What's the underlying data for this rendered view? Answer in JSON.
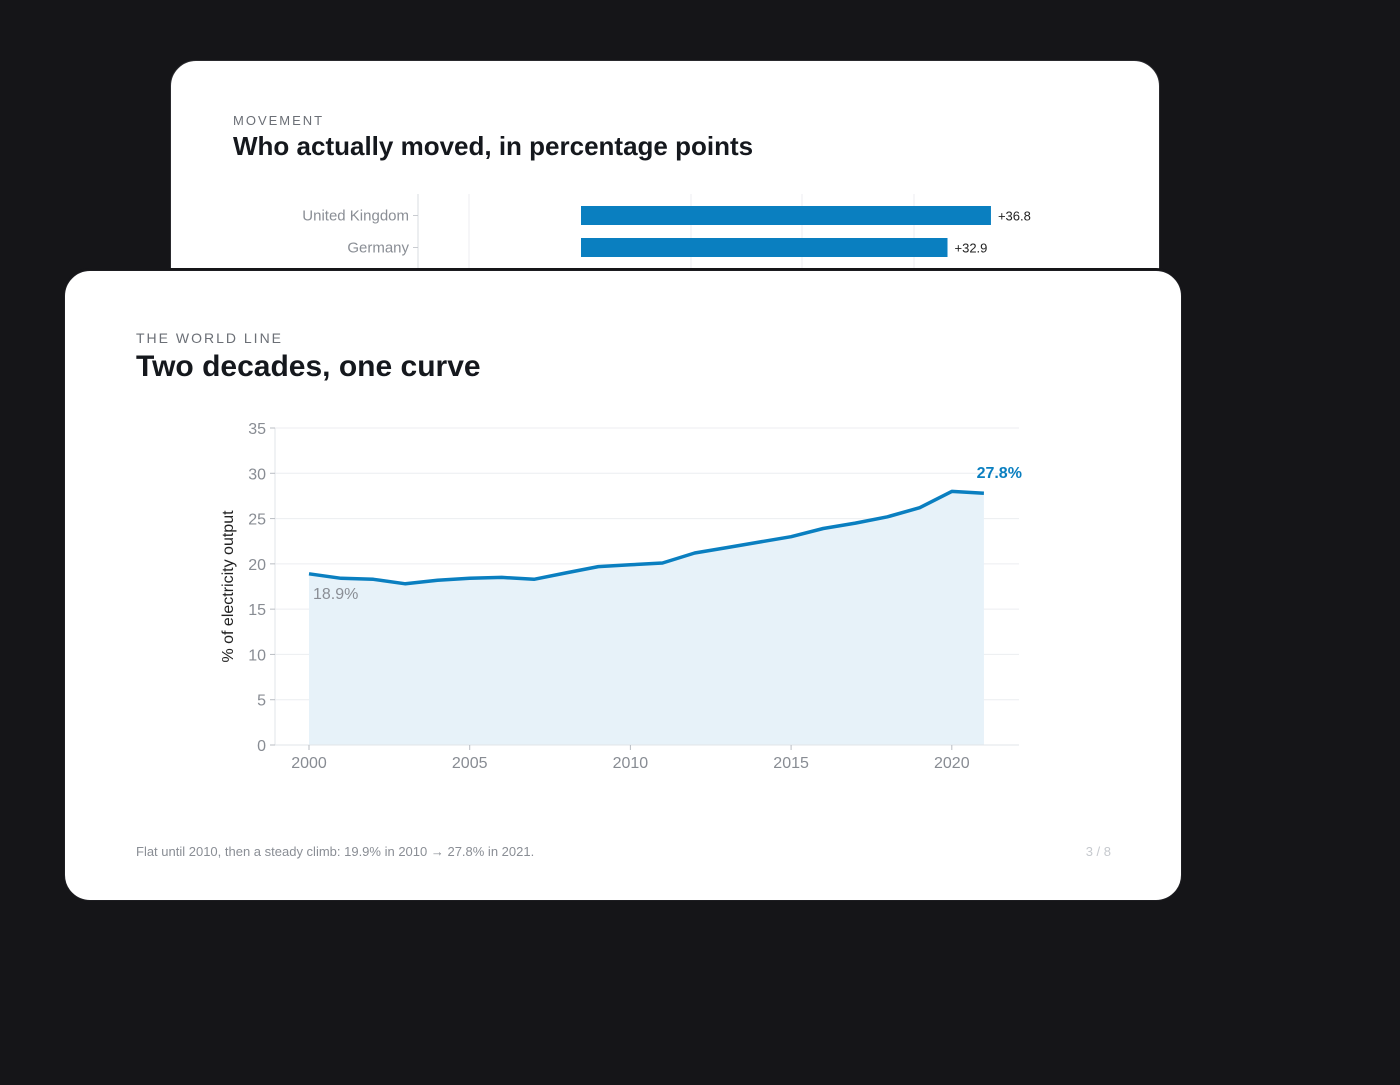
{
  "back_card": {
    "eyebrow": "MOVEMENT",
    "title": "Who actually moved, in percentage points",
    "chart_data": {
      "type": "bar",
      "orientation": "horizontal",
      "categories": [
        "United Kingdom",
        "Germany"
      ],
      "values": [
        36.8,
        32.9
      ],
      "value_labels": [
        "+36.8",
        "+32.9"
      ],
      "color": "#0a7fc0"
    }
  },
  "front_card": {
    "eyebrow": "THE WORLD LINE",
    "title": "Two decades, one curve",
    "caption": "Flat until 2010, then a steady climb: 19.9% in 2010 → 27.8% in 2021.",
    "pager": "3 / 8",
    "chart_data": {
      "type": "area",
      "ylabel": "% of electricity output",
      "xlabel": "",
      "xlim": [
        2000,
        2021
      ],
      "ylim": [
        0,
        35
      ],
      "x_ticks": [
        2000,
        2005,
        2010,
        2015,
        2020
      ],
      "y_ticks": [
        0,
        5,
        10,
        15,
        20,
        25,
        30,
        35
      ],
      "line_color": "#0a7fc0",
      "fill_color": "#e7f2f9",
      "series": [
        {
          "x": [
            2000,
            2001,
            2002,
            2003,
            2004,
            2005,
            2006,
            2007,
            2008,
            2009,
            2010,
            2011,
            2012,
            2013,
            2014,
            2015,
            2016,
            2017,
            2018,
            2019,
            2020,
            2021
          ],
          "y": [
            18.9,
            18.4,
            18.3,
            17.8,
            18.2,
            18.4,
            18.5,
            18.3,
            19.0,
            19.7,
            19.9,
            20.1,
            21.2,
            21.8,
            22.4,
            23.0,
            23.9,
            24.5,
            25.2,
            26.2,
            28.0,
            27.8
          ]
        }
      ],
      "annotations": [
        {
          "text": "18.9%",
          "x": 2000,
          "y": 18.9
        },
        {
          "text": "27.8%",
          "x": 2021,
          "y": 27.8
        }
      ]
    }
  }
}
